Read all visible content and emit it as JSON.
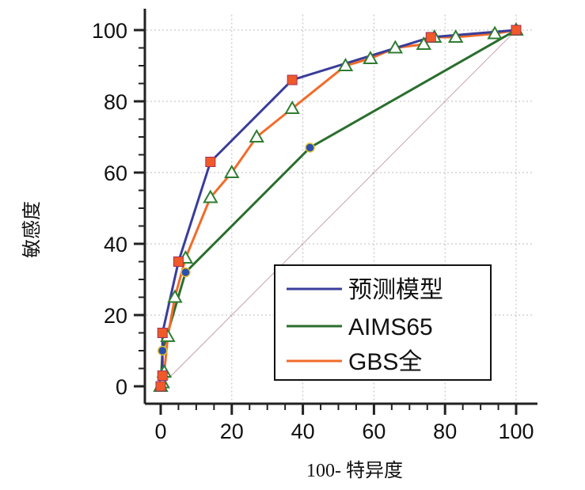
{
  "chart_data": {
    "type": "line",
    "title": "",
    "xlabel": "100- 特异度",
    "ylabel": "敏感度",
    "xlim": [
      0,
      100
    ],
    "ylim": [
      0,
      100
    ],
    "xticks": [
      "0",
      "20",
      "40",
      "60",
      "80",
      "100"
    ],
    "yticks": [
      "0",
      "20",
      "40",
      "60",
      "80",
      "100"
    ],
    "grid": true,
    "legend_position": "bottom-right",
    "series": [
      {
        "name": "预测模型",
        "color": "#3a3d9a",
        "marker": "square",
        "marker_color": "#f05a28",
        "x": [
          0,
          0.5,
          0.5,
          5,
          14,
          37,
          76,
          100
        ],
        "y": [
          0,
          3,
          15,
          35,
          63,
          86,
          98,
          100
        ]
      },
      {
        "name": "AIMS65",
        "color": "#2a6e2e",
        "marker": "circle",
        "marker_color": "#2a4fb0",
        "x": [
          0,
          0.5,
          7,
          42,
          100
        ],
        "y": [
          0,
          10,
          32,
          67,
          100
        ]
      },
      {
        "name": "GBS全",
        "color": "#f26b2a",
        "marker": "triangle",
        "marker_color": "#2f7d32",
        "x": [
          0,
          0.5,
          1,
          2,
          4,
          7,
          14,
          20,
          27,
          37,
          52,
          59,
          66,
          74,
          77,
          83,
          94,
          100
        ],
        "y": [
          0,
          1,
          4,
          14,
          25,
          36,
          53,
          60,
          70,
          78,
          90,
          92,
          95,
          96,
          98,
          98,
          99,
          100
        ]
      }
    ],
    "reference_line": {
      "color": "#c9a0b0",
      "x": [
        0,
        100
      ],
      "y": [
        0,
        100
      ]
    }
  }
}
